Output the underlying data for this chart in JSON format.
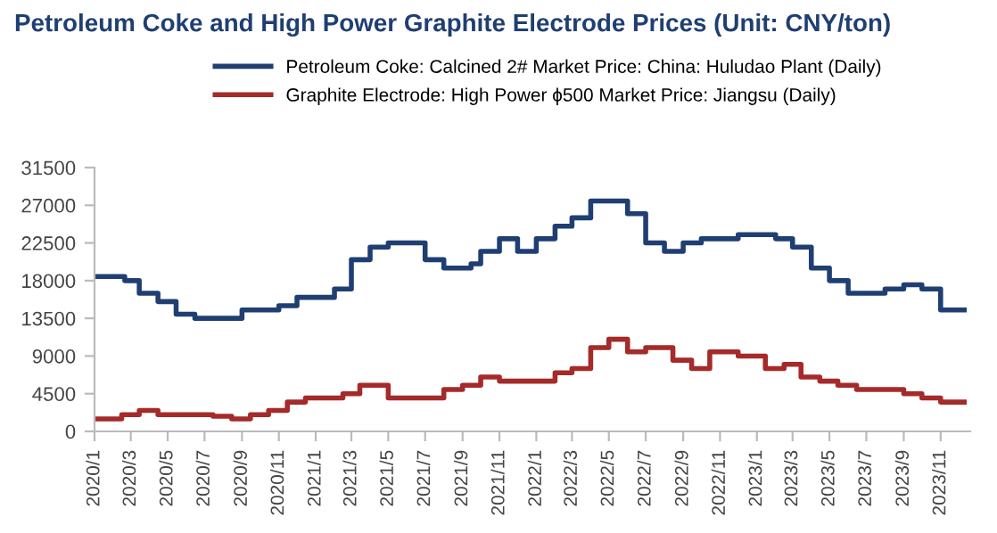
{
  "chart_data": {
    "type": "step",
    "title": "Petroleum Coke and High Power Graphite Electrode Prices (Unit: CNY/ton)",
    "series": [
      {
        "name": "Petroleum Coke: Calcined 2# Market Price: China: Huludao Plant (Daily)",
        "color": "#1f3f73",
        "x": [
          "2020-01-05",
          "2020-02-20",
          "2020-03-15",
          "2020-04-15",
          "2020-05-15",
          "2020-06-15",
          "2020-09-01",
          "2020-11-01",
          "2020-12-01",
          "2021-02-01",
          "2021-03-01",
          "2021-04-01",
          "2021-05-01",
          "2021-07-01",
          "2021-08-01",
          "2021-09-15",
          "2021-10-01",
          "2021-11-01",
          "2021-12-01",
          "2022-01-01",
          "2022-02-01",
          "2022-03-01",
          "2022-04-01",
          "2022-06-01",
          "2022-07-01",
          "2022-08-01",
          "2022-09-01",
          "2022-10-01",
          "2022-12-01",
          "2023-02-01",
          "2023-03-01",
          "2023-04-01",
          "2023-05-01",
          "2023-06-01",
          "2023-08-01",
          "2023-09-01",
          "2023-10-01",
          "2023-11-01",
          "2023-12-10"
        ],
        "values": [
          18500,
          18000,
          16500,
          15500,
          14000,
          13500,
          14500,
          15000,
          16000,
          17000,
          20500,
          22000,
          22500,
          20500,
          19500,
          20000,
          21500,
          23000,
          21500,
          23000,
          24500,
          25500,
          27500,
          26000,
          22500,
          21500,
          22500,
          23000,
          23500,
          23000,
          22000,
          19500,
          18000,
          16500,
          17000,
          17500,
          17000,
          14500,
          14500
        ]
      },
      {
        "name": "Graphite Electrode: High Power ϕ500 Market Price: Jiangsu (Daily)",
        "color": "#a52a2a",
        "x": [
          "2020-01-05",
          "2020-02-15",
          "2020-03-15",
          "2020-04-15",
          "2020-07-15",
          "2020-08-15",
          "2020-09-15",
          "2020-10-15",
          "2020-11-15",
          "2020-12-15",
          "2021-02-15",
          "2021-03-15",
          "2021-05-01",
          "2021-08-01",
          "2021-09-01",
          "2021-10-01",
          "2021-11-01",
          "2022-02-01",
          "2022-03-01",
          "2022-04-01",
          "2022-05-01",
          "2022-06-01",
          "2022-07-01",
          "2022-08-15",
          "2022-09-15",
          "2022-10-15",
          "2022-12-01",
          "2023-01-15",
          "2023-02-15",
          "2023-03-15",
          "2023-04-15",
          "2023-05-15",
          "2023-06-15",
          "2023-09-01",
          "2023-10-01",
          "2023-11-01",
          "2023-12-10"
        ],
        "values": [
          1500,
          2000,
          2500,
          2000,
          1800,
          1500,
          2000,
          2500,
          3500,
          4000,
          4500,
          5500,
          4000,
          5000,
          5500,
          6500,
          6000,
          7000,
          7500,
          10000,
          11000,
          9500,
          10000,
          8500,
          7500,
          9500,
          9000,
          7500,
          8000,
          6500,
          6000,
          5500,
          5000,
          4500,
          4000,
          3500,
          3500
        ]
      }
    ],
    "xlim": [
      "2020-01-01",
      "2023-12-20"
    ],
    "xticks": [
      {
        "value": "2020-01-01",
        "label": "2020/1"
      },
      {
        "value": "2020-03-01",
        "label": "2020/3"
      },
      {
        "value": "2020-05-01",
        "label": "2020/5"
      },
      {
        "value": "2020-07-01",
        "label": "2020/7"
      },
      {
        "value": "2020-09-01",
        "label": "2020/9"
      },
      {
        "value": "2020-11-01",
        "label": "2020/11"
      },
      {
        "value": "2021-01-01",
        "label": "2021/1"
      },
      {
        "value": "2021-03-01",
        "label": "2021/3"
      },
      {
        "value": "2021-05-01",
        "label": "2021/5"
      },
      {
        "value": "2021-07-01",
        "label": "2021/7"
      },
      {
        "value": "2021-09-01",
        "label": "2021/9"
      },
      {
        "value": "2021-11-01",
        "label": "2021/11"
      },
      {
        "value": "2022-01-01",
        "label": "2022/1"
      },
      {
        "value": "2022-03-01",
        "label": "2022/3"
      },
      {
        "value": "2022-05-01",
        "label": "2022/5"
      },
      {
        "value": "2022-07-01",
        "label": "2022/7"
      },
      {
        "value": "2022-09-01",
        "label": "2022/9"
      },
      {
        "value": "2022-11-01",
        "label": "2022/11"
      },
      {
        "value": "2023-01-01",
        "label": "2023/1"
      },
      {
        "value": "2023-03-01",
        "label": "2023/3"
      },
      {
        "value": "2023-05-01",
        "label": "2023/5"
      },
      {
        "value": "2023-07-01",
        "label": "2023/7"
      },
      {
        "value": "2023-09-01",
        "label": "2023/9"
      },
      {
        "value": "2023-11-01",
        "label": "2023/11"
      }
    ],
    "ylim": [
      0,
      31500
    ],
    "yticks": [
      0,
      4500,
      9000,
      13500,
      18000,
      22500,
      27000,
      31500
    ],
    "grid": false,
    "legend": "top"
  }
}
